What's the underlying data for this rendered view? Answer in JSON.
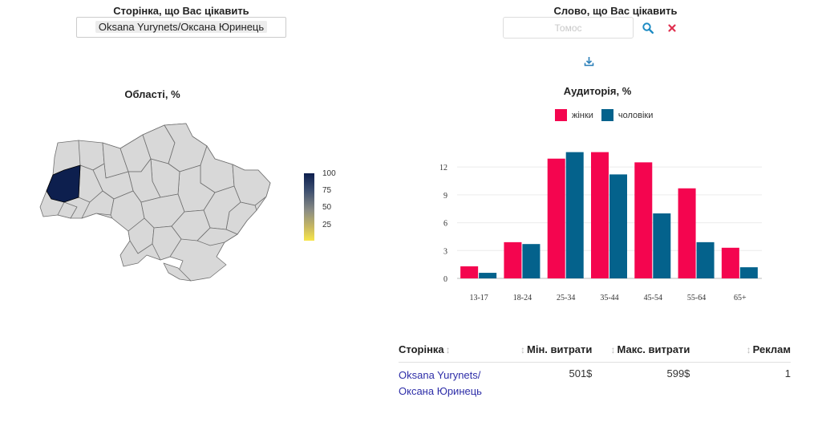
{
  "page_picker": {
    "label": "Сторінка, що Вас цікавить",
    "value": "Oksana Yurynets/Оксана Юринець"
  },
  "word_picker": {
    "label": "Слово, що Вас цікавить",
    "placeholder": "Томос"
  },
  "icons": {
    "search": "search-icon",
    "clear": "close-icon",
    "download": "download-icon"
  },
  "map": {
    "title": "Області, %",
    "scale_ticks": [
      "100",
      "75",
      "50",
      "25"
    ],
    "highlight_color": "#0d1f4e",
    "base_color": "#d8d8d8"
  },
  "chart_data": {
    "type": "bar",
    "title": "Аудиторія, %",
    "categories": [
      "13-17",
      "18-24",
      "25-34",
      "35-44",
      "45-54",
      "55-64",
      "65+"
    ],
    "series": [
      {
        "name": "жінки",
        "color": "#f4054f",
        "values": [
          1.3,
          3.9,
          12.9,
          13.6,
          12.5,
          9.7,
          3.3
        ]
      },
      {
        "name": "чоловіки",
        "color": "#04628c",
        "values": [
          0.6,
          3.7,
          13.6,
          11.2,
          7.0,
          3.9,
          1.2
        ]
      }
    ],
    "yticks": [
      0,
      3,
      6,
      9,
      12
    ],
    "ylim": [
      0,
      14
    ],
    "grid": true,
    "legend_position": "top-center"
  },
  "table": {
    "headers": {
      "page": "Сторінка",
      "min": "Мін. витрати",
      "max": "Макс. витрати",
      "ads": "Реклам"
    },
    "rows": [
      {
        "page_line1": "Oksana Yurynets/",
        "page_line2": "Оксана Юринець",
        "min": "501$",
        "max": "599$",
        "ads": "1"
      }
    ]
  }
}
